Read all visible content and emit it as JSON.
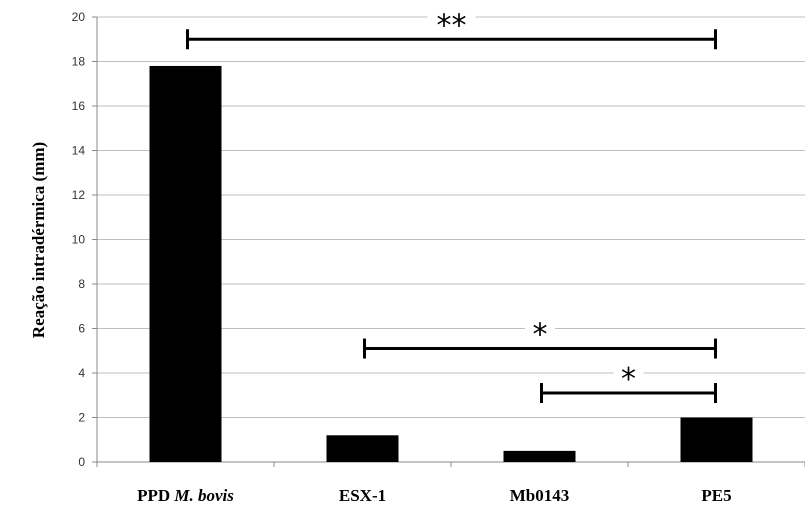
{
  "chart_data": {
    "type": "bar",
    "ylabel": "Reação intradérmica (mm)",
    "ylim": [
      0,
      20
    ],
    "yticks": [
      0,
      2,
      4,
      6,
      8,
      10,
      12,
      14,
      16,
      18,
      20
    ],
    "grid": true,
    "categories": [
      {
        "prefix": "PPD ",
        "italic": "M. bovis"
      },
      {
        "prefix": "ESX-1",
        "italic": ""
      },
      {
        "prefix": "Mb0143",
        "italic": ""
      },
      {
        "prefix": "PE5",
        "italic": ""
      }
    ],
    "values": [
      17.8,
      1.2,
      0.5,
      2.0
    ],
    "bar_color": "#000000",
    "grid_color": "#bfbfbf",
    "significance": [
      {
        "from": 0,
        "to": 3,
        "y": 19.0,
        "label": "**"
      },
      {
        "from": 1,
        "to": 3,
        "y": 5.1,
        "label": "*"
      },
      {
        "from": 2,
        "to": 3,
        "y": 3.1,
        "label": "*"
      }
    ]
  }
}
